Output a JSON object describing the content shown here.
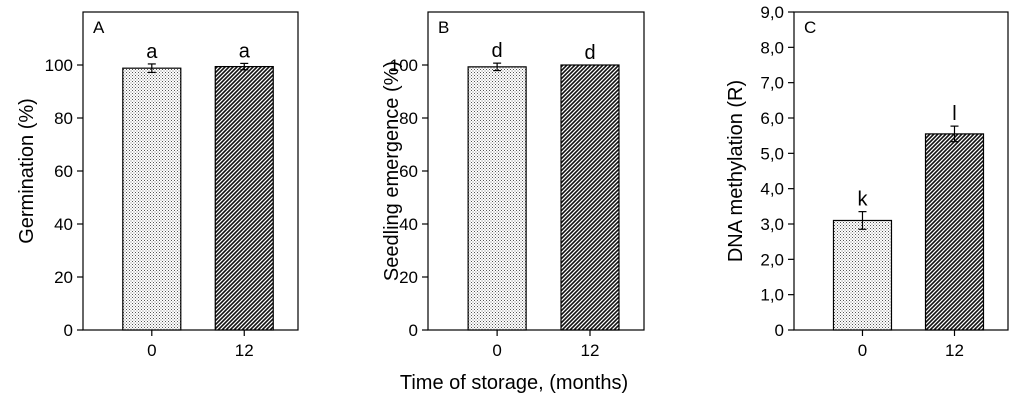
{
  "figure": {
    "x_axis_title": "Time of storage, (months)"
  },
  "chart_data": [
    {
      "type": "bar",
      "panel_label": "A",
      "ylabel": "Germination (%)",
      "categories": [
        "0",
        "12"
      ],
      "values": [
        98.8,
        99.4
      ],
      "errors": [
        1.6,
        1.2
      ],
      "significance": [
        "a",
        "a"
      ],
      "ylim": [
        0,
        120
      ],
      "yticks": [
        0,
        20,
        40,
        60,
        80,
        100
      ],
      "yticks_text": [
        "0",
        "20",
        "40",
        "60",
        "80",
        "100"
      ],
      "bar_fills": [
        "light-dotted",
        "dark-diagonal-hatch"
      ]
    },
    {
      "type": "bar",
      "panel_label": "B",
      "ylabel": "Seedling emergence  (%)",
      "categories": [
        "0",
        "12"
      ],
      "values": [
        99.3,
        100.0
      ],
      "errors": [
        1.4,
        0
      ],
      "significance": [
        "d",
        "d"
      ],
      "ylim": [
        0,
        120
      ],
      "yticks": [
        0,
        20,
        40,
        60,
        80,
        100
      ],
      "yticks_text": [
        "0",
        "20",
        "40",
        "60",
        "80",
        "100"
      ],
      "bar_fills": [
        "light-dotted",
        "dark-diagonal-hatch"
      ]
    },
    {
      "type": "bar",
      "panel_label": "C",
      "ylabel": "DNA methylation (R)",
      "categories": [
        "0",
        "12"
      ],
      "values": [
        3.1,
        5.55
      ],
      "errors": [
        0.25,
        0.22
      ],
      "significance": [
        "k",
        "l"
      ],
      "ylim": [
        0,
        9
      ],
      "yticks": [
        0,
        1,
        2,
        3,
        4,
        5,
        6,
        7,
        8,
        9
      ],
      "yticks_text": [
        "0",
        "1,0",
        "2,0",
        "3,0",
        "4,0",
        "5,0",
        "6,0",
        "7,0",
        "8,0",
        "9,0"
      ],
      "bar_fills": [
        "light-dotted",
        "dark-diagonal-hatch"
      ]
    }
  ]
}
